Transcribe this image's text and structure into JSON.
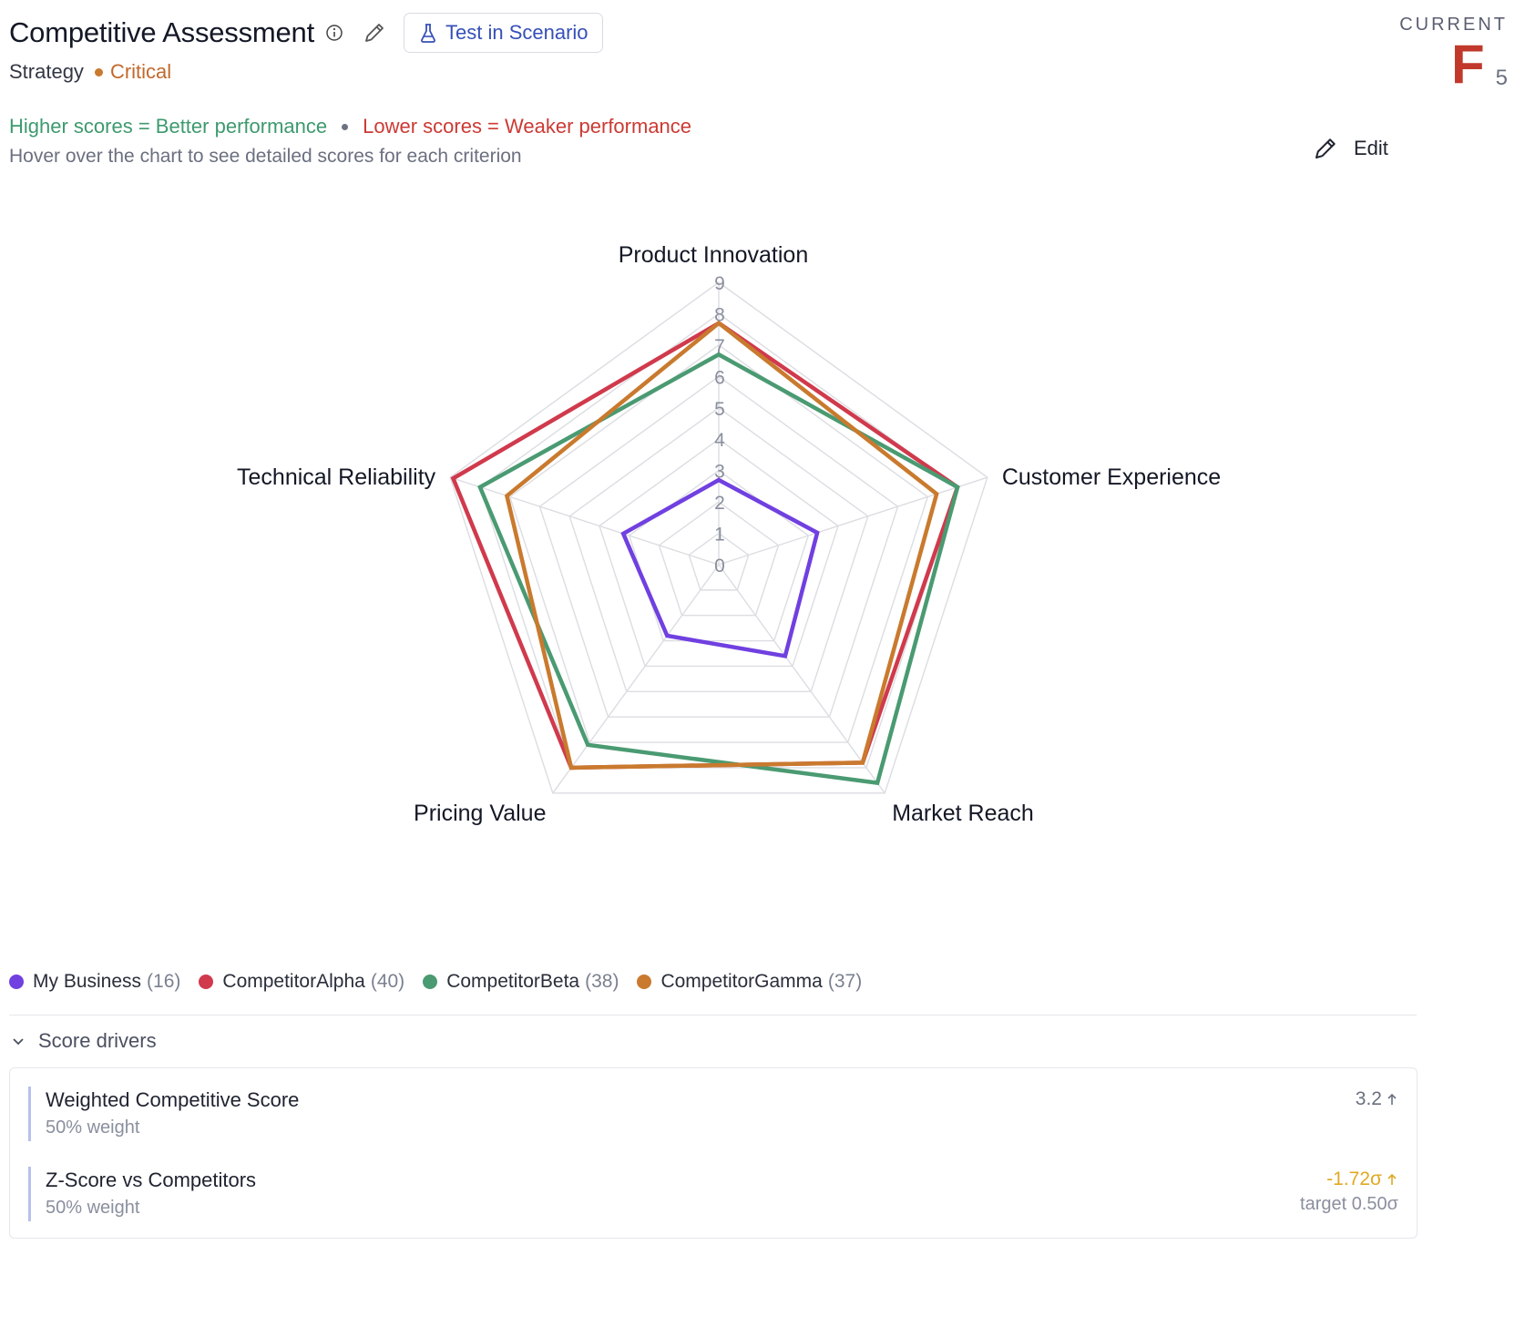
{
  "header": {
    "title": "Competitive Assessment",
    "scenario_button": "Test in Scenario",
    "category": "Strategy",
    "status": "Critical"
  },
  "current": {
    "label": "CURRENT",
    "grade": "F",
    "score": "5"
  },
  "guide": {
    "higher": "Higher scores = Better performance",
    "lower": "Lower scores = Weaker performance",
    "hint": "Hover over the chart to see detailed scores for each criterion"
  },
  "edit_label": "Edit",
  "chart_data": {
    "type": "radar",
    "axes": [
      "Product Innovation",
      "Customer Experience",
      "Market Reach",
      "Pricing Value",
      "Technical Reliability"
    ],
    "rlim": [
      0,
      9
    ],
    "ticks": [
      "0",
      "1",
      "2",
      "3",
      "4",
      "5",
      "6",
      "7",
      "8",
      "9"
    ],
    "grid": true,
    "legend_position": "bottom-left",
    "series": [
      {
        "name": "My Business",
        "total": "(16)",
        "color": "#7040e0",
        "values": [
          2.7,
          3.3,
          3.6,
          2.8,
          3.2
        ]
      },
      {
        "name": "CompetitorAlpha",
        "total": "(40)",
        "color": "#d03a4c",
        "values": [
          7.7,
          8.0,
          7.8,
          8.0,
          8.9
        ]
      },
      {
        "name": "CompetitorBeta",
        "total": "(38)",
        "color": "#4a9a72",
        "values": [
          6.7,
          8.0,
          8.6,
          7.1,
          8.0
        ]
      },
      {
        "name": "CompetitorGamma",
        "total": "(37)",
        "color": "#c97a2e",
        "values": [
          7.7,
          7.3,
          7.8,
          8.0,
          7.1
        ]
      }
    ]
  },
  "drivers": {
    "toggle_label": "Score drivers",
    "items": [
      {
        "name": "Weighted Competitive Score",
        "weight": "50% weight",
        "value": "3.2"
      },
      {
        "name": "Z-Score vs Competitors",
        "weight": "50% weight",
        "value": "-1.72σ",
        "target": "target 0.50σ"
      }
    ]
  }
}
